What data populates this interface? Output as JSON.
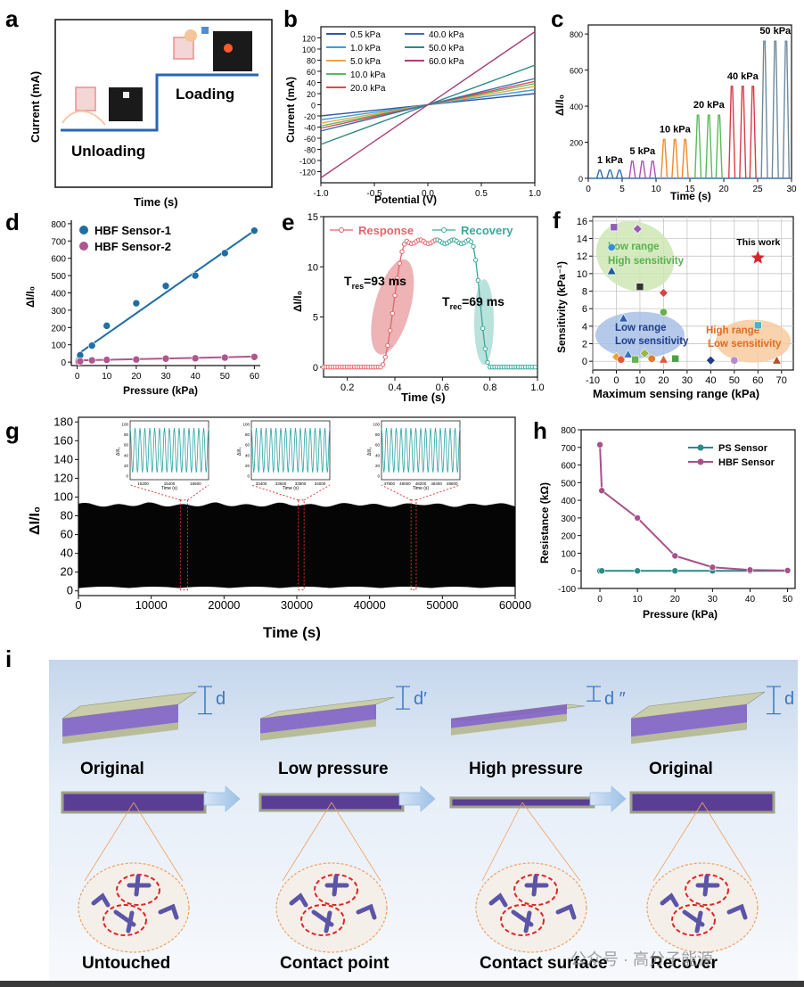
{
  "panels": {
    "a": {
      "letter": "a",
      "xlabel": "Time (s)",
      "ylabel": "Current (mA)",
      "unloading": "Unloading",
      "loading": "Loading"
    },
    "i": {
      "letter": "i",
      "stages": [
        {
          "title": "Original",
          "dlabel": "d",
          "bottom": "Untouched"
        },
        {
          "title": "Low pressure",
          "dlabel": "d′",
          "bottom": "Contact point"
        },
        {
          "title": "High pressure",
          "dlabel": "d ″",
          "bottom": "Contact surface"
        },
        {
          "title": "Original",
          "dlabel": "d",
          "bottom": "Recover"
        }
      ],
      "watermark": "公众号 · 高分子能源"
    }
  },
  "chart_data": [
    {
      "id": "b",
      "letter": "b",
      "type": "line",
      "xlabel": "Potential (V)",
      "ylabel": "Current (mA)",
      "xlim": [
        -1.0,
        1.0
      ],
      "ylim": [
        -140,
        140
      ],
      "xticks": [
        "-1.0",
        "-0.5",
        "0.0",
        "0.5",
        "1.0"
      ],
      "yticks": [
        "-120",
        "-100",
        "-80",
        "-60",
        "-40",
        "-20",
        "0",
        "20",
        "40",
        "60",
        "80",
        "100",
        "120"
      ],
      "legend_position": "top",
      "series": [
        {
          "name": "0.5 kPa",
          "color": "#2f56a6",
          "slope": 20
        },
        {
          "name": "1.0 kPa",
          "color": "#3aa0d8",
          "slope": 27
        },
        {
          "name": "5.0 kPa",
          "color": "#e9a84d",
          "slope": 33
        },
        {
          "name": "10.0 kPa",
          "color": "#5cb85c",
          "slope": 38
        },
        {
          "name": "20.0 kPa",
          "color": "#e0474c",
          "slope": 42
        },
        {
          "name": "40.0 kPa",
          "color": "#3c6fb0",
          "slope": 47
        },
        {
          "name": "50.0 kPa",
          "color": "#2b8a86",
          "slope": 71
        },
        {
          "name": "60.0 kPa",
          "color": "#a83f7a",
          "slope": 131
        }
      ]
    },
    {
      "id": "c",
      "letter": "c",
      "type": "line",
      "xlabel": "Time (s)",
      "ylabel": "ΔI/I₀",
      "xlim": [
        0,
        30
      ],
      "ylim": [
        0,
        850
      ],
      "xticks": [
        "0",
        "5",
        "10",
        "15",
        "20",
        "25",
        "30"
      ],
      "yticks": [
        "0",
        "200",
        "400",
        "600",
        "800"
      ],
      "groups": [
        {
          "label": "1 kPa",
          "color": "#2f6fb5",
          "peaks": [
            1.7,
            3.2,
            4.6
          ],
          "height": 45
        },
        {
          "label": "5 kPa",
          "color": "#b04eb3",
          "peaks": [
            6.5,
            8.0,
            9.5
          ],
          "height": 95
        },
        {
          "label": "10 kPa",
          "color": "#ef8a2d",
          "peaks": [
            11.2,
            12.8,
            14.3
          ],
          "height": 215
        },
        {
          "label": "20 kPa",
          "color": "#5bb85b",
          "peaks": [
            16.2,
            17.8,
            19.3
          ],
          "height": 350
        },
        {
          "label": "40 kPa",
          "color": "#d93b48",
          "peaks": [
            21.2,
            22.8,
            24.3
          ],
          "height": 510
        },
        {
          "label": "50 kPa",
          "color": "#6f8a9e",
          "peaks": [
            26.0,
            27.6,
            29.2
          ],
          "height": 760
        }
      ]
    },
    {
      "id": "d",
      "letter": "d",
      "type": "scatter",
      "xlabel": "Pressure (kPa)",
      "ylabel": "ΔI/I₀",
      "xlim": [
        -2,
        62
      ],
      "ylim": [
        -20,
        820
      ],
      "xticks": [
        "0",
        "10",
        "20",
        "30",
        "40",
        "50",
        "60"
      ],
      "yticks": [
        "0",
        "100",
        "200",
        "300",
        "400",
        "500",
        "600",
        "700",
        "800"
      ],
      "legend_position": "top-left",
      "series": [
        {
          "name": "HBF Sensor-1",
          "color": "#1f6fa3",
          "x": [
            0.5,
            1,
            5,
            10,
            20,
            30,
            40,
            50,
            60
          ],
          "y": [
            10,
            40,
            95,
            210,
            340,
            440,
            500,
            630,
            760
          ],
          "fit": [
            [
              1,
              55
            ],
            [
              60,
              760
            ]
          ]
        },
        {
          "name": "HBF Sensor-2",
          "color": "#b0568f",
          "x": [
            0.5,
            1,
            5,
            10,
            20,
            30,
            40,
            50,
            60
          ],
          "y": [
            2,
            5,
            10,
            13,
            15,
            20,
            22,
            26,
            30
          ],
          "fit": [
            [
              1,
              10
            ],
            [
              60,
              32
            ]
          ]
        }
      ]
    },
    {
      "id": "e",
      "letter": "e",
      "type": "line",
      "xlabel": "Time (s)",
      "ylabel": "ΔI/I₀",
      "xlim": [
        0.1,
        1.0
      ],
      "ylim": [
        -1,
        15
      ],
      "xticks": [
        "0.2",
        "0.4",
        "0.6",
        "0.8",
        "1.0"
      ],
      "yticks": [
        "0",
        "5",
        "10",
        "15"
      ],
      "legend_position": "top",
      "series": [
        {
          "name": "Response",
          "color": "#e4646b"
        },
        {
          "name": "Recovery",
          "color": "#3aa89b"
        }
      ],
      "annotations": [
        {
          "main": "T",
          "sub": "res",
          "rest": "=93 ms"
        },
        {
          "main": "T",
          "sub": "rec",
          "rest": "=69 ms"
        }
      ]
    },
    {
      "id": "f",
      "letter": "f",
      "type": "scatter",
      "xlabel": "Maximum sensing range (kPa)",
      "ylabel": "Sensitivity (kPa⁻¹)",
      "xlim": [
        -10,
        75
      ],
      "ylim": [
        -1,
        16.5
      ],
      "xticks": [
        "-10",
        "0",
        "10",
        "20",
        "30",
        "40",
        "50",
        "60",
        "70"
      ],
      "yticks": [
        "0",
        "2",
        "4",
        "6",
        "8",
        "10",
        "12",
        "14",
        "16"
      ],
      "regions": [
        {
          "line1": "Low range",
          "line2": "High sensitivity",
          "color": "#5ab04f",
          "fill": "#cfe6b5"
        },
        {
          "line1": "Low range",
          "line2": "Low sensitivity",
          "color": "#1f3e8a",
          "fill": "#a8c0e6"
        },
        {
          "line1": "High range",
          "line2": "Low sensitivity",
          "color": "#e06d1f",
          "fill": "#f8caa0"
        }
      ],
      "points": [
        {
          "x": -1,
          "y": 15.3,
          "color": "#8e5fb5"
        },
        {
          "x": 9,
          "y": 15.1,
          "color": "#9d58b8"
        },
        {
          "x": -2,
          "y": 13.0,
          "color": "#3a8fd0"
        },
        {
          "x": -2,
          "y": 10.3,
          "color": "#1c5a9e"
        },
        {
          "x": 10,
          "y": 8.5,
          "color": "#333333"
        },
        {
          "x": 20,
          "y": 7.8,
          "color": "#d9453c"
        },
        {
          "x": 20,
          "y": 5.6,
          "color": "#6ab04c"
        },
        {
          "x": 3,
          "y": 4.9,
          "color": "#2d5fb0"
        },
        {
          "x": 60,
          "y": 4.1,
          "color": "#45b6c7"
        },
        {
          "x": 0,
          "y": 0.5,
          "color": "#f0a030"
        },
        {
          "x": 2,
          "y": 0.2,
          "color": "#e35b3a"
        },
        {
          "x": 5,
          "y": 0.8,
          "color": "#3b73c4"
        },
        {
          "x": 8,
          "y": 0.2,
          "color": "#6ab04c"
        },
        {
          "x": 12,
          "y": 0.9,
          "color": "#9bb43c"
        },
        {
          "x": 15,
          "y": 0.3,
          "color": "#e07b2e"
        },
        {
          "x": 20,
          "y": 0.2,
          "color": "#e05a3a"
        },
        {
          "x": 25,
          "y": 0.3,
          "color": "#4aa04a"
        },
        {
          "x": 40,
          "y": 0.1,
          "color": "#1f3e8a"
        },
        {
          "x": 50,
          "y": 0.1,
          "color": "#b58ad0"
        },
        {
          "x": 68,
          "y": 0.1,
          "color": "#b5542a"
        }
      ],
      "star": {
        "label": "This work",
        "x": 60,
        "y": 11.8,
        "color": "#d6242c"
      }
    },
    {
      "id": "g",
      "letter": "g",
      "type": "area",
      "xlabel": "Time (s)",
      "ylabel": "ΔI/I₀",
      "xlim": [
        0,
        60000
      ],
      "ylim": [
        -5,
        185
      ],
      "xticks": [
        "0",
        "10000",
        "20000",
        "30000",
        "40000",
        "50000",
        "60000"
      ],
      "yticks": [
        "0",
        "20",
        "40",
        "60",
        "80",
        "100",
        "120",
        "140",
        "160",
        "180"
      ],
      "band": {
        "low": 3,
        "high": 93
      },
      "insets": [
        {
          "xticks": [
            "15200",
            "15400",
            "15600"
          ],
          "yticks": [
            "0",
            "20",
            "40",
            "60",
            "80",
            "100"
          ],
          "xlabel": "Time (s)",
          "ylabel": "ΔI/I₀",
          "window": [
            14000,
            15000
          ]
        },
        {
          "xticks": [
            "33400",
            "33600",
            "33800",
            "34000"
          ],
          "yticks": [
            "0",
            "20",
            "40",
            "60",
            "80",
            "100"
          ],
          "xlabel": "Time (s)",
          "ylabel": "ΔI/I₀",
          "window": [
            30200,
            31000
          ]
        },
        {
          "xticks": [
            "47800",
            "48000",
            "48200",
            "48400",
            "48600"
          ],
          "yticks": [
            "0",
            "20",
            "40",
            "60",
            "80",
            "100"
          ],
          "xlabel": "Time (s)",
          "ylabel": "ΔI/I₀",
          "window": [
            45700,
            46400
          ]
        }
      ]
    },
    {
      "id": "h",
      "letter": "h",
      "type": "line",
      "xlabel": "Pressure (kPa)",
      "ylabel": "Resistance (kΩ)",
      "xlim": [
        -5,
        52
      ],
      "ylim": [
        -100,
        800
      ],
      "xticks": [
        "0",
        "10",
        "20",
        "30",
        "40",
        "50"
      ],
      "yticks": [
        "-100",
        "0",
        "100",
        "200",
        "300",
        "400",
        "500",
        "600",
        "700",
        "800"
      ],
      "legend_position": "top-right",
      "series": [
        {
          "name": "PS Sensor",
          "color": "#2b8a8a",
          "x": [
            0,
            0.5,
            10,
            20,
            30,
            40,
            50
          ],
          "y": [
            0,
            0,
            0,
            0,
            0,
            0,
            0
          ]
        },
        {
          "name": "HBF Sensor",
          "color": "#a8508a",
          "x": [
            0,
            0.5,
            10,
            20,
            30,
            40,
            50
          ],
          "y": [
            715,
            455,
            300,
            85,
            20,
            5,
            2
          ]
        }
      ]
    }
  ]
}
